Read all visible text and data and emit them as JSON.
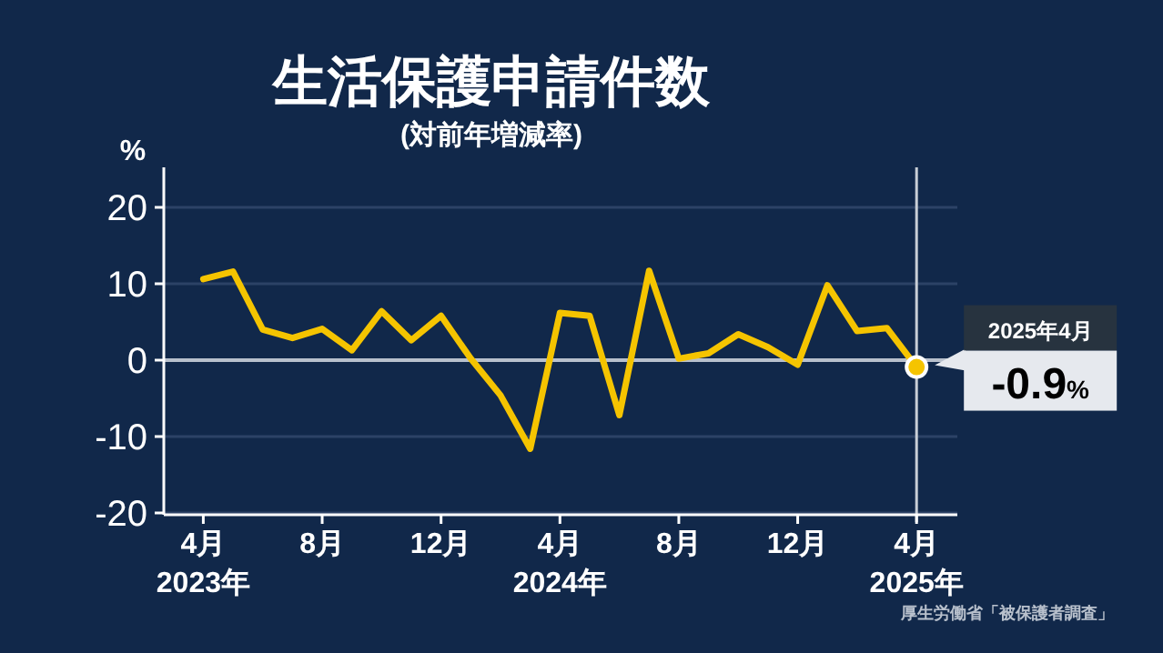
{
  "chart_data": {
    "type": "line",
    "title": "生活保護申請件数",
    "subtitle": "(対前年増減率)",
    "ylabel": "%",
    "categories": [
      "4月\n2023年",
      null,
      null,
      null,
      "8月",
      null,
      null,
      null,
      "12月",
      null,
      null,
      null,
      "4月\n2024年",
      null,
      null,
      null,
      "8月",
      null,
      null,
      null,
      "12月",
      null,
      null,
      null,
      "4月\n2025年"
    ],
    "series": [
      {
        "color": "#f5c400",
        "values": [
          10.6,
          11.6,
          4.0,
          2.9,
          4.1,
          1.3,
          6.4,
          2.6,
          5.8,
          0.2,
          -4.6,
          -11.6,
          6.2,
          5.8,
          -7.2,
          11.7,
          0.2,
          0.9,
          3.4,
          1.7,
          -0.6,
          9.8,
          3.8,
          4.2,
          -0.9
        ]
      },
      {
        "type": "scatter",
        "color": "#f5c400",
        "x": [
          "4月\n2025年"
        ],
        "values": [
          -0.9
        ],
        "marker": "circle"
      }
    ],
    "ylim": [
      -20,
      20
    ],
    "yticks": [
      -20,
      -10,
      0,
      10,
      20
    ],
    "grid": "y",
    "ref_lines": [
      {
        "axis": "y",
        "value": 0,
        "color": "#b8c0cc"
      },
      {
        "axis": "x",
        "value": "4月\n2025年",
        "color": "#c8ced6"
      }
    ],
    "annotations": [
      "2025年4月",
      "-0.9%",
      "厚生労働省「被保護者調査」"
    ]
  }
}
